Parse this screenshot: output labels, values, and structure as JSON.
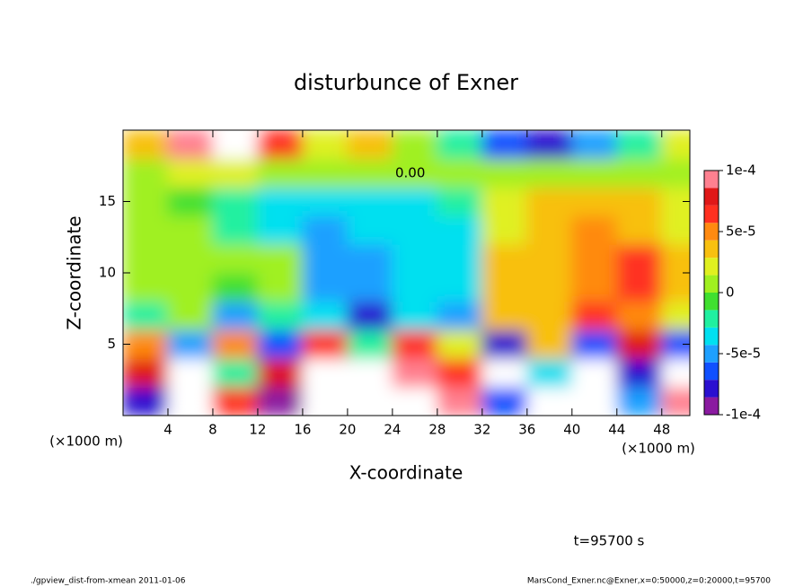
{
  "chart_data": {
    "type": "heatmap",
    "title": "disturbunce of Exner",
    "x_label": "X-coordinate",
    "y_label": "Z-coordinate",
    "x_unit": "(×1000 m)",
    "y_unit": "(×1000 m)",
    "time_label": "t=95700 s",
    "footer_left": "./gpview_dist-from-xmean  2011-01-06",
    "footer_right": "MarsCond_Exner.nc@Exner,x=0:50000,z=0:20000,t=95700",
    "contour_label": "0.00",
    "xlim": [
      0,
      50.5
    ],
    "ylim": [
      0,
      20
    ],
    "xticks": [
      4,
      8,
      12,
      16,
      20,
      24,
      28,
      32,
      36,
      40,
      44,
      48
    ],
    "yticks": [
      5,
      10,
      15
    ],
    "x": [
      2,
      6,
      10,
      14,
      18,
      22,
      26,
      30,
      34,
      38,
      42,
      46,
      50
    ],
    "y": [
      1,
      3,
      5,
      7,
      9,
      11,
      13,
      15,
      17,
      19
    ],
    "values": [
      [
        -8e-05,
        0.00011,
        6e-05,
        -0.0001,
        0.00012,
        -0.00012,
        0.00011,
        9e-05,
        -6e-05,
        0.00011,
        0.00012,
        -5e-05,
        0.0001
      ],
      [
        8e-05,
        0.00012,
        -2e-05,
        8e-05,
        0.00011,
        -0.00011,
        0.0001,
        6e-05,
        0.00012,
        -4e-05,
        0.00011,
        -8e-05,
        -0.00012
      ],
      [
        5e-05,
        -5e-05,
        5e-05,
        -6e-05,
        6e-05,
        -2e-05,
        6e-05,
        2e-05,
        -8e-05,
        4e-05,
        -6e-05,
        8e-05,
        -7e-05
      ],
      [
        -2e-05,
        1e-05,
        -5e-05,
        -2e-05,
        -4e-05,
        -8e-05,
        -4e-05,
        -5e-05,
        3e-05,
        4e-05,
        6e-05,
        5e-05,
        2e-05
      ],
      [
        0,
        0,
        -1e-05,
        0,
        -5e-05,
        -5e-05,
        -4e-05,
        -4e-05,
        3e-05,
        3e-05,
        5e-05,
        6e-05,
        4e-05
      ],
      [
        1e-05,
        1e-05,
        0,
        0,
        -5e-05,
        -5e-05,
        -4e-05,
        -3e-05,
        3e-05,
        4e-05,
        5e-05,
        6e-05,
        3e-05
      ],
      [
        0,
        0,
        -2e-05,
        -3e-05,
        -5e-05,
        -4e-05,
        -4e-05,
        -3e-05,
        2e-05,
        4e-05,
        5e-05,
        4e-05,
        2e-05
      ],
      [
        0,
        -1e-05,
        -2e-05,
        -3e-05,
        -4e-05,
        -4e-05,
        -3e-05,
        -2e-05,
        2e-05,
        3e-05,
        4e-05,
        3e-05,
        2e-05
      ],
      [
        1e-05,
        2e-05,
        2e-05,
        1e-05,
        0,
        0,
        0,
        0,
        1e-05,
        1e-05,
        1e-05,
        1e-05,
        1e-05
      ],
      [
        3e-05,
        0.0001,
        0.00011,
        6e-05,
        2e-05,
        3e-05,
        1e-05,
        -2e-05,
        -6e-05,
        -8e-05,
        -5e-05,
        -2e-05,
        2e-05
      ]
    ],
    "clim": [
      -0.0001,
      0.0001
    ],
    "cticks": [
      {
        "value": 0.0001,
        "label": "1e-4"
      },
      {
        "value": 5e-05,
        "label": "5e-5"
      },
      0,
      {
        "value": -5e-05,
        "label": "-5e-5"
      },
      {
        "value": -0.0001,
        "label": "-1e-4"
      }
    ],
    "colormap": [
      "#8a1aa0",
      "#2a10d0",
      "#1050ff",
      "#1ea0ff",
      "#00e0f0",
      "#20f0a0",
      "#40e030",
      "#a0f020",
      "#e0f020",
      "#f8c010",
      "#ff8a10",
      "#ff3020",
      "#e01818",
      "#ff8090"
    ],
    "out_of_range_color": "#ffffff"
  }
}
